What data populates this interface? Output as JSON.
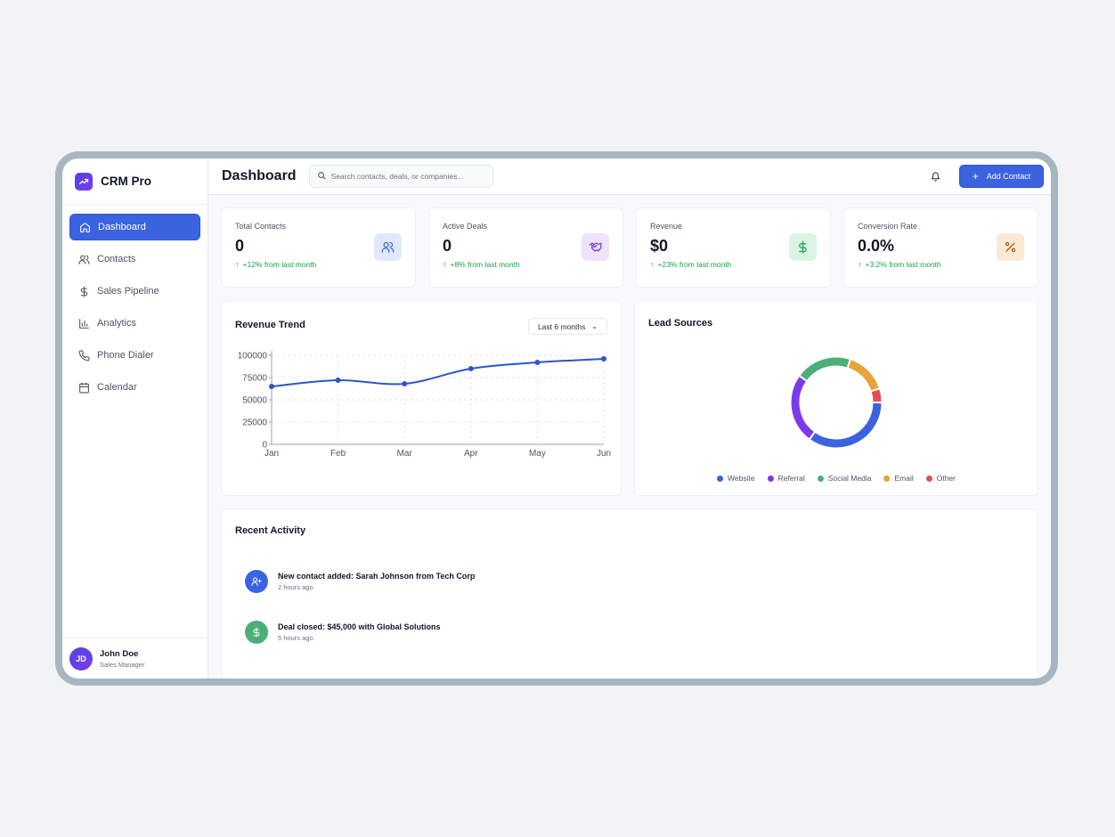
{
  "brand": {
    "name": "CRM Pro"
  },
  "sidebar": {
    "items": [
      {
        "label": "Dashboard",
        "icon": "home-icon",
        "active": true
      },
      {
        "label": "Contacts",
        "icon": "users-icon"
      },
      {
        "label": "Sales Pipeline",
        "icon": "dollar-icon"
      },
      {
        "label": "Analytics",
        "icon": "bar-chart-icon"
      },
      {
        "label": "Phone Dialer",
        "icon": "phone-icon"
      },
      {
        "label": "Calendar",
        "icon": "calendar-icon"
      }
    ],
    "user": {
      "initials": "JD",
      "name": "John Doe",
      "role": "Sales Manager"
    }
  },
  "header": {
    "title": "Dashboard",
    "search_placeholder": "Search contacts, deals, or companies...",
    "add_label": "Add Contact"
  },
  "stats": [
    {
      "label": "Total Contacts",
      "value": "0",
      "change": "+12% from last month",
      "icon": "users-icon",
      "color": "#3b63e0",
      "bg": "#e0e9fb"
    },
    {
      "label": "Active Deals",
      "value": "0",
      "change": "+8% from last month",
      "icon": "handshake-icon",
      "color": "#7c3aed",
      "bg": "#efe3fb"
    },
    {
      "label": "Revenue",
      "value": "$0",
      "change": "+23% from last month",
      "icon": "dollar-icon",
      "color": "#16a34a",
      "bg": "#dcf3e4"
    },
    {
      "label": "Conversion Rate",
      "value": "0.0%",
      "change": "+3.2% from last month",
      "icon": "percent-icon",
      "color": "#b45309",
      "bg": "#fbe9d6"
    }
  ],
  "revenue": {
    "title": "Revenue Trend",
    "range": "Last 6 months"
  },
  "leads": {
    "title": "Lead Sources"
  },
  "chart_data": [
    {
      "type": "line",
      "title": "Revenue Trend",
      "categories": [
        "Jan",
        "Feb",
        "Mar",
        "Apr",
        "May",
        "Jun"
      ],
      "values": [
        65000,
        72000,
        68000,
        85000,
        92000,
        96000
      ],
      "yticks": [
        "100000",
        "75000",
        "50000",
        "25000",
        "0"
      ],
      "ylim": [
        0,
        100000
      ],
      "grid": true,
      "color": "#2d55c8"
    },
    {
      "type": "pie",
      "title": "Lead Sources",
      "categories": [
        "Website",
        "Referral",
        "Social Media",
        "Email",
        "Other"
      ],
      "values": [
        35,
        25,
        20,
        15,
        5
      ],
      "colors": [
        "#3b63e0",
        "#7c3aed",
        "#4caf78",
        "#e8a33d",
        "#e05252"
      ],
      "legend": "bottom"
    }
  ],
  "activity": {
    "title": "Recent Activity",
    "items": [
      {
        "text": "New contact added: Sarah Johnson from Tech Corp",
        "time": "2 hours ago",
        "icon": "user-plus-icon",
        "color": "#3b63e0"
      },
      {
        "text": "Deal closed: $45,000 with Global Solutions",
        "time": "5 hours ago",
        "icon": "dollar-icon",
        "color": "#4caf78"
      }
    ]
  }
}
